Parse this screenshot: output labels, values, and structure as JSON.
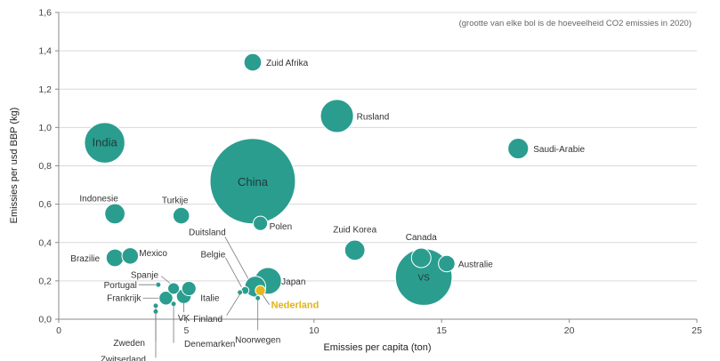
{
  "chart_data": {
    "type": "scatter",
    "subtitle": "(grootte   van elke bol is de hoeveelheid  CO2 emissies in 2020)",
    "xlabel": "Emissies  per capita (ton)",
    "ylabel": "Emissies  per usd BBP (kg)",
    "xlim": [
      0,
      25
    ],
    "ylim": [
      0,
      1.6
    ],
    "x_ticks": [
      "0",
      "5",
      "10",
      "15",
      "20",
      "25"
    ],
    "y_ticks": [
      "0,0",
      "0,2",
      "0,4",
      "0,6",
      "0,8",
      "1,0",
      "1,2",
      "1,4",
      "1,6"
    ],
    "grid": "horizontal",
    "colors": {
      "bubble": "#2a9d8f",
      "highlight": "#e6b820",
      "grid": "#d9d9d9"
    },
    "points": [
      {
        "name": "China",
        "x": 7.6,
        "y": 0.72,
        "co2_mt": 10700,
        "highlight": false
      },
      {
        "name": "VS",
        "x": 14.3,
        "y": 0.22,
        "co2_mt": 4700,
        "highlight": false
      },
      {
        "name": "India",
        "x": 1.8,
        "y": 0.92,
        "co2_mt": 2400,
        "highlight": false
      },
      {
        "name": "Rusland",
        "x": 10.9,
        "y": 1.06,
        "co2_mt": 1600,
        "highlight": false
      },
      {
        "name": "Japan",
        "x": 8.2,
        "y": 0.2,
        "co2_mt": 1050,
        "highlight": false
      },
      {
        "name": "Zuid Afrika",
        "x": 7.6,
        "y": 1.34,
        "co2_mt": 450,
        "highlight": false
      },
      {
        "name": "Saudi-Arabie",
        "x": 18.0,
        "y": 0.89,
        "co2_mt": 620,
        "highlight": false
      },
      {
        "name": "Indonesie",
        "x": 2.2,
        "y": 0.55,
        "co2_mt": 600,
        "highlight": false
      },
      {
        "name": "Turkije",
        "x": 4.8,
        "y": 0.54,
        "co2_mt": 400,
        "highlight": false
      },
      {
        "name": "Polen",
        "x": 7.9,
        "y": 0.5,
        "co2_mt": 300,
        "highlight": false
      },
      {
        "name": "Zuid  Korea",
        "x": 11.6,
        "y": 0.36,
        "co2_mt": 600,
        "highlight": false
      },
      {
        "name": "Canada",
        "x": 14.2,
        "y": 0.32,
        "co2_mt": 560,
        "highlight": false
      },
      {
        "name": "Australie",
        "x": 15.2,
        "y": 0.29,
        "co2_mt": 400,
        "highlight": false
      },
      {
        "name": "Brazilie",
        "x": 2.2,
        "y": 0.32,
        "co2_mt": 450,
        "highlight": false
      },
      {
        "name": "Mexico",
        "x": 2.8,
        "y": 0.33,
        "co2_mt": 400,
        "highlight": false
      },
      {
        "name": "Spanje",
        "x": 4.5,
        "y": 0.16,
        "co2_mt": 200,
        "highlight": false
      },
      {
        "name": "Italie",
        "x": 5.1,
        "y": 0.16,
        "co2_mt": 300,
        "highlight": false
      },
      {
        "name": "Portugal",
        "x": 3.9,
        "y": 0.18,
        "co2_mt": 40,
        "highlight": false
      },
      {
        "name": "VK",
        "x": 4.9,
        "y": 0.12,
        "co2_mt": 320,
        "highlight": false
      },
      {
        "name": "Frankrijk",
        "x": 4.2,
        "y": 0.11,
        "co2_mt": 280,
        "highlight": false
      },
      {
        "name": "Duitsland",
        "x": 7.7,
        "y": 0.17,
        "co2_mt": 640,
        "highlight": false
      },
      {
        "name": "Belgie",
        "x": 7.3,
        "y": 0.15,
        "co2_mt": 90,
        "highlight": false
      },
      {
        "name": "Finland",
        "x": 7.1,
        "y": 0.14,
        "co2_mt": 40,
        "highlight": false
      },
      {
        "name": "Nederland",
        "x": 7.9,
        "y": 0.15,
        "co2_mt": 150,
        "highlight": true
      },
      {
        "name": "Noorwegen",
        "x": 7.8,
        "y": 0.11,
        "co2_mt": 40,
        "highlight": false
      },
      {
        "name": "Zweden",
        "x": 3.8,
        "y": 0.07,
        "co2_mt": 40,
        "highlight": false
      },
      {
        "name": "Zwitserland",
        "x": 3.8,
        "y": 0.04,
        "co2_mt": 35,
        "highlight": false
      },
      {
        "name": "Denemarken",
        "x": 4.5,
        "y": 0.08,
        "co2_mt": 30,
        "highlight": false
      }
    ]
  }
}
